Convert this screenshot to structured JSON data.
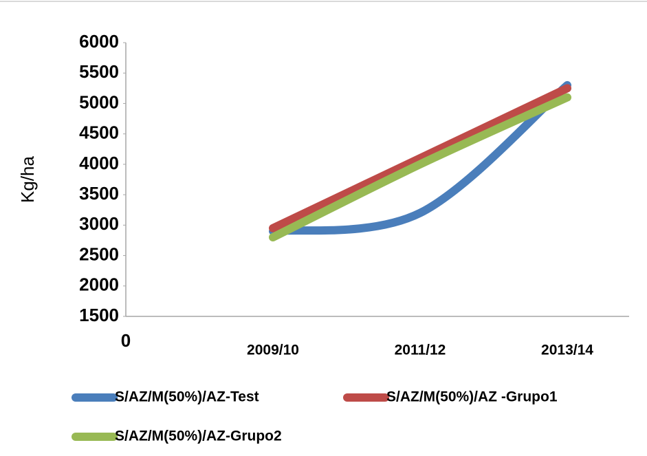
{
  "chart_data": {
    "type": "line",
    "y_label": "Kg/ha",
    "categories": [
      "0",
      "2009/10",
      "2011/12",
      "2013/14"
    ],
    "series": [
      {
        "name": "S/AZ/M(50%)/AZ-Test",
        "color": "#4a7ebb",
        "values": [
          null,
          2900,
          3200,
          5300
        ]
      },
      {
        "name": "S/AZ/M(50%)/AZ -Grupo1",
        "color": "#be4b48",
        "values": [
          null,
          2950,
          4100,
          5250
        ]
      },
      {
        "name": "S/AZ/M(50%)/AZ-Grupo2",
        "color": "#98b954",
        "values": [
          null,
          2800,
          4000,
          5100
        ]
      }
    ],
    "ylim": [
      1500,
      6000
    ],
    "yticks": [
      1500,
      2000,
      2500,
      3000,
      3500,
      4000,
      4500,
      5000,
      5500,
      6000
    ],
    "smooth": true,
    "grid": false,
    "legend": "bottom"
  }
}
